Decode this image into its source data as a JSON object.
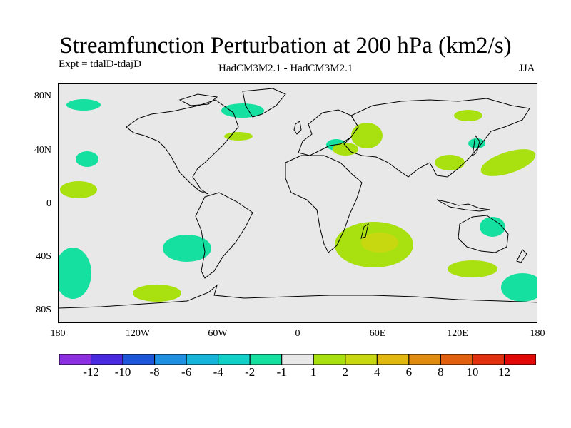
{
  "header": {
    "title": "Streamfunction Perturbation at 200 hPa (km2/s)",
    "experiment": "Expt = tdalD-tdajD",
    "model": "HadCM3M2.1 - HadCM3M2.1",
    "season": "JJA"
  },
  "map": {
    "ocean_color": "#e8e8e8",
    "coast_color": "#000000",
    "lat_labels": [
      "80N",
      "40N",
      "0",
      "40S",
      "80S"
    ],
    "lon_labels": [
      "180",
      "120W",
      "60W",
      "0",
      "60E",
      "120E",
      "180"
    ]
  },
  "colorbar": {
    "colors": [
      "#8c2fe0",
      "#4a2ae0",
      "#1f55d8",
      "#1f8fe0",
      "#16b4d8",
      "#10d0c8",
      "#16e0a0",
      "#e8e8e8",
      "#a8e010",
      "#c8d810",
      "#e0b810",
      "#e08c10",
      "#e06010",
      "#e03010",
      "#e00808"
    ],
    "labels": [
      "-12",
      "-10",
      "-8",
      "-6",
      "-4",
      "-2",
      "-1",
      "1",
      "2",
      "4",
      "6",
      "8",
      "10",
      "12"
    ]
  },
  "fields": {
    "neg_color": "#16e0a0",
    "pos1_color": "#a8e010",
    "pos2_color": "#c8d810"
  }
}
